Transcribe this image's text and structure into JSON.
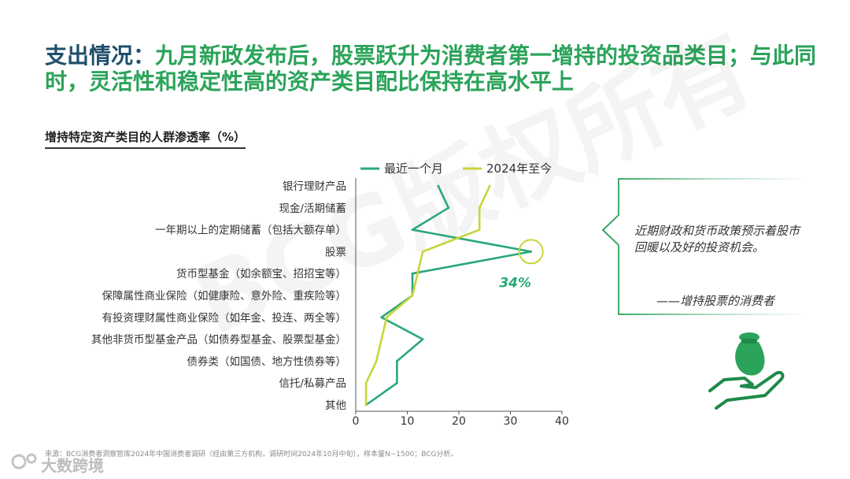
{
  "title": {
    "lead": "支出情况：",
    "text": "九月新政发布后，股票跃升为消费者第一增持的投资品类目；与此同时，灵活性和稳定性高的资产类目配比保持在高水平上"
  },
  "watermark": "BCG版权所有",
  "chart_data": {
    "type": "line",
    "title": "增持特定资产类目的人群渗透率（%）",
    "orientation": "horizontal",
    "categories": [
      "银行理财产品",
      "现金/活期储蓄",
      "一年期以上的定期储蓄（包括大额存单）",
      "股票",
      "货币型基金（如余额宝、招招宝等）",
      "保障属性商业保险（如健康险、意外险、重疾险等）",
      "有投资理财属性商业保险（如年金、投连、两全等）",
      "其他非货币型基金产品（如债券型基金、股票型基金）",
      "债券类（如国债、地方性债券等）",
      "信托/私募产品",
      "其他"
    ],
    "series": [
      {
        "name": "最近一个月",
        "color": "#2ba877",
        "values": [
          16,
          18,
          11,
          34,
          11,
          11,
          5,
          13,
          8,
          8,
          2
        ]
      },
      {
        "name": "2024年至今",
        "color": "#c9d43a",
        "values": [
          26,
          24,
          24,
          13,
          12,
          11,
          6,
          5,
          4,
          2,
          2
        ]
      }
    ],
    "xlim": [
      0,
      40
    ],
    "xticks": [
      "0",
      "10",
      "20",
      "30",
      "40"
    ],
    "highlight": {
      "category": "股票",
      "series": "最近一个月",
      "label": "34%"
    },
    "legend": "top"
  },
  "callout": {
    "quote": "近期财政和货币政策预示着股市回暖以及好的投资机会。",
    "attribution": "——增持股票的消费者"
  },
  "source": "来源：BCG消费者洞察智库2024年中国消费者调研（经由第三方机构，调研时间2024年10月中旬），样本量N~1500；BCG分析。",
  "brand": "大数跨境",
  "icons": {
    "callout": "money-bag-hand-icon",
    "brand": "brand-logo-icon"
  }
}
